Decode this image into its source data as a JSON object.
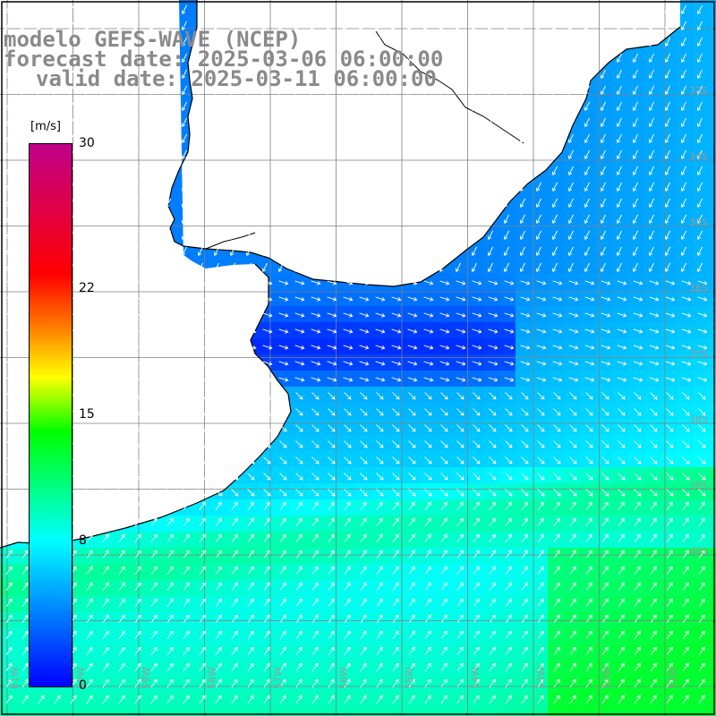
{
  "title": {
    "model": "modelo GEFS-WAVE (NCEP)",
    "forecast": "forecast date: 2025-03-06 06:00:00",
    "valid": "valid date: 2025-03-11 06:00:00"
  },
  "legend": {
    "unit": "[m/s]",
    "ticks": [
      "30",
      "22",
      "15",
      "8",
      "0"
    ],
    "tick_values": [
      30,
      22,
      15,
      8,
      0
    ],
    "range": [
      0,
      30
    ],
    "colors": [
      "#0000ff",
      "#00ffff",
      "#00ff00",
      "#ffff00",
      "#ff8000",
      "#ff0000",
      "#c0008a"
    ]
  },
  "map": {
    "lon_labels": [
      "61W",
      "60W",
      "59W",
      "58W",
      "57W",
      "56W",
      "55W",
      "54W",
      "53W",
      "52W",
      "51W"
    ],
    "lat_labels": [
      "33S",
      "34S",
      "35S",
      "36S",
      "37S",
      "38S",
      "39S",
      "40S"
    ],
    "land_color": "#ffffff",
    "grid_color": "#808080",
    "coast_color": "#000000",
    "arrow_color": "#ffffff"
  }
}
